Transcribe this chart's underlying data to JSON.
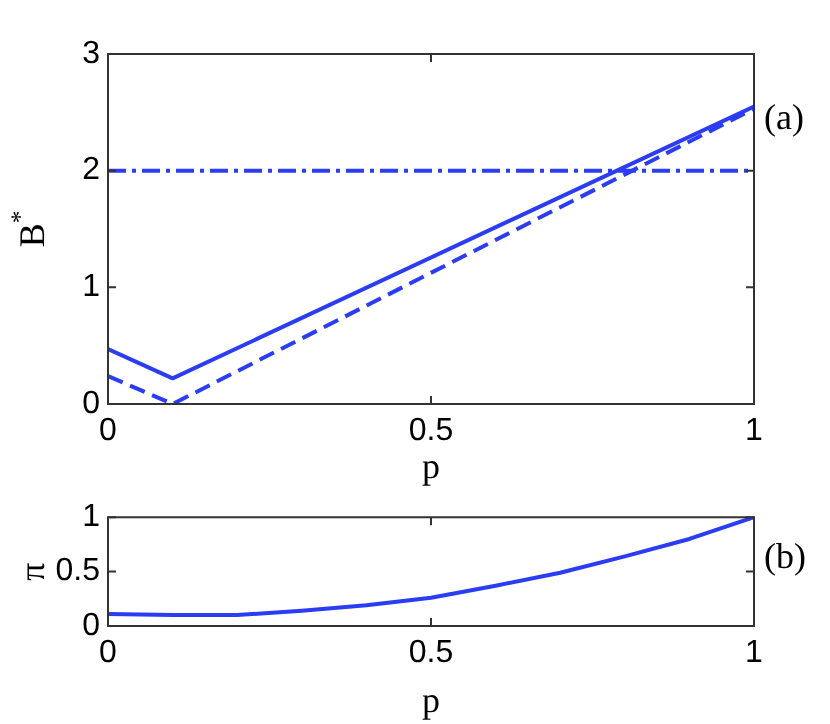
{
  "chart_data": [
    {
      "type": "line",
      "xlabel": "p",
      "ylabel": "B$^{*}$",
      "annotations": [
        "(a)"
      ],
      "xlim": [
        0,
        1
      ],
      "xticks": [
        0,
        0.5,
        1
      ],
      "ylim": [
        0,
        3
      ],
      "yticks": [
        0,
        1,
        2,
        3
      ],
      "series": [
        {
          "color": "#2b3cf5",
          "line_style": "solid",
          "x": [
            0,
            0.1,
            1
          ],
          "values": [
            0.47,
            0.22,
            2.55
          ]
        },
        {
          "color": "#2b3cf5",
          "line_style": "dashed",
          "x": [
            0,
            0.1,
            1
          ],
          "values": [
            0.24,
            0,
            2.53
          ]
        }
      ],
      "ref_lines": [
        {
          "axis": "y",
          "value": 2,
          "color": "#2b3cf5",
          "line_style": "dashdot"
        }
      ]
    },
    {
      "type": "line",
      "xlabel": "p",
      "ylabel": "π",
      "annotations": [
        "(b)"
      ],
      "xlim": [
        0,
        1
      ],
      "xticks": [
        0,
        0.5,
        1
      ],
      "ylim": [
        0,
        1
      ],
      "yticks": [
        0,
        0.5,
        1
      ],
      "series": [
        {
          "color": "#2b3cf5",
          "line_style": "solid",
          "x": [
            0,
            0.1,
            0.2,
            0.3,
            0.4,
            0.5,
            0.6,
            0.7,
            0.8,
            0.9,
            1
          ],
          "values": [
            0.11,
            0.1,
            0.1,
            0.14,
            0.19,
            0.26,
            0.37,
            0.49,
            0.64,
            0.8,
            1
          ]
        }
      ]
    }
  ]
}
